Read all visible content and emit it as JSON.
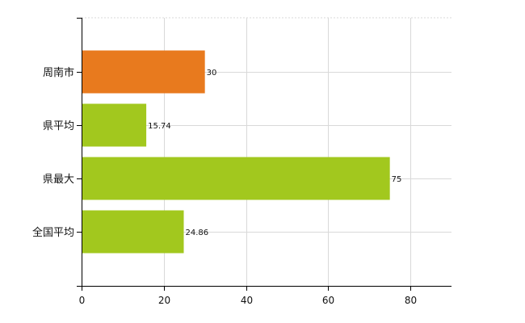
{
  "chart_data": {
    "type": "bar",
    "orientation": "horizontal",
    "categories": [
      "周南市",
      "県平均",
      "県最大",
      "全国平均"
    ],
    "values": [
      30,
      15.74,
      75,
      24.86
    ],
    "data_labels": [
      "30",
      "15.74",
      "75",
      "24.86"
    ],
    "bar_colors": [
      "#e87a1e",
      "#a2c81e",
      "#a2c81e",
      "#a2c81e"
    ],
    "xlim": [
      0,
      90
    ],
    "x_ticks": [
      0,
      20,
      40,
      60,
      80
    ],
    "x_tick_labels": [
      "0",
      "20",
      "40",
      "60",
      "80"
    ],
    "grid": true,
    "title": "",
    "xlabel": "",
    "ylabel": ""
  }
}
